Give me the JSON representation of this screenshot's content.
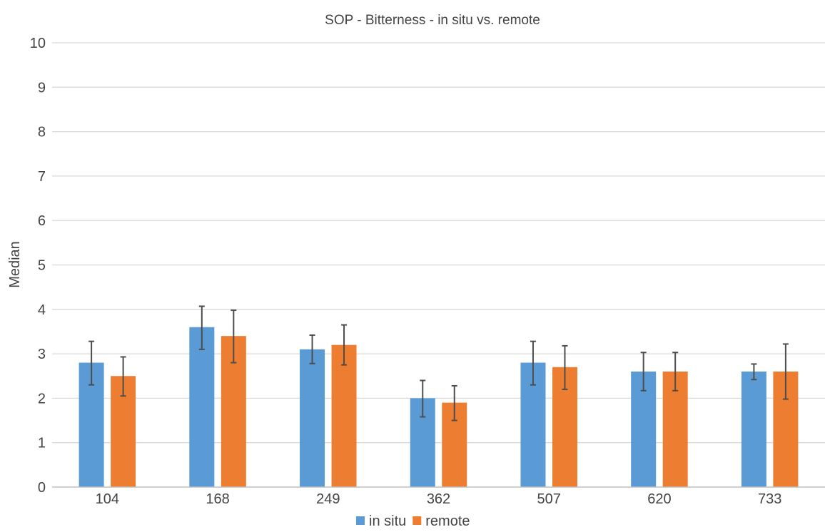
{
  "chart_data": {
    "type": "bar",
    "title": "SOP - Bitterness - in situ vs. remote",
    "xlabel": "",
    "ylabel": "Median",
    "ylim": [
      0,
      10
    ],
    "yticks": [
      "0",
      "1",
      "2",
      "3",
      "4",
      "5",
      "6",
      "7",
      "8",
      "9",
      "10"
    ],
    "grid": true,
    "legend_position": "bottom",
    "categories": [
      "104",
      "168",
      "249",
      "362",
      "507",
      "620",
      "733"
    ],
    "series": [
      {
        "name": "in situ",
        "color": "#5B9BD5",
        "values": [
          2.8,
          3.6,
          3.1,
          2.0,
          2.8,
          2.6,
          2.6
        ],
        "error_low": [
          2.3,
          3.1,
          2.78,
          1.58,
          2.3,
          2.17,
          2.42
        ],
        "error_high": [
          3.28,
          4.07,
          3.42,
          2.4,
          3.28,
          3.03,
          2.77
        ]
      },
      {
        "name": "remote",
        "color": "#ED7D31",
        "values": [
          2.5,
          3.4,
          3.2,
          1.9,
          2.7,
          2.6,
          2.6
        ],
        "error_low": [
          2.05,
          2.8,
          2.75,
          1.5,
          2.2,
          2.17,
          1.98
        ],
        "error_high": [
          2.93,
          3.98,
          3.65,
          2.28,
          3.18,
          3.03,
          3.22
        ]
      }
    ]
  }
}
